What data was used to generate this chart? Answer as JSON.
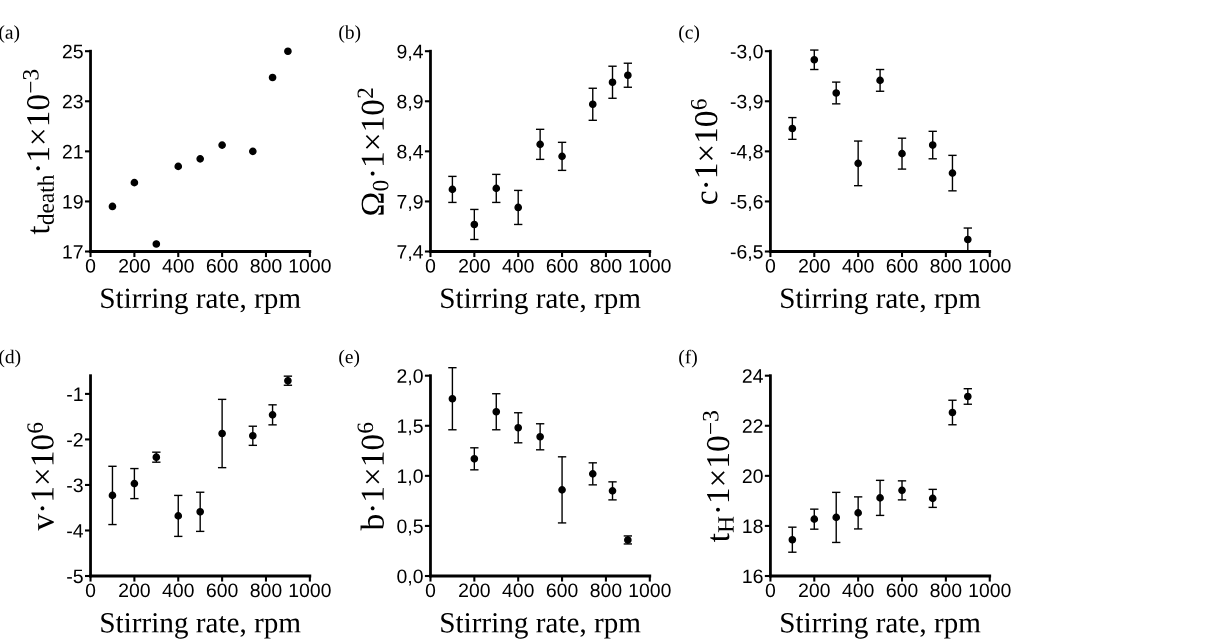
{
  "chart_data": [
    {
      "type": "scatter",
      "title": "(a)",
      "xlabel": "Stirring rate, rpm",
      "ylabel": "t$_{death}$·1×10$^{−3}$",
      "marker": "circle",
      "xlim": [
        0,
        1000
      ],
      "xticks": [
        0,
        200,
        400,
        600,
        800,
        1000
      ],
      "ylim": [
        17,
        25
      ],
      "yticks": [
        17,
        19,
        21,
        23,
        25
      ],
      "x": [
        100,
        200,
        300,
        400,
        500,
        600,
        740,
        830,
        900
      ],
      "series": [
        {
          "color": "#000000",
          "values": [
            18.8,
            19.75,
            17.3,
            20.4,
            20.7,
            21.25,
            21.0,
            23.95,
            25.0
          ]
        }
      ]
    },
    {
      "type": "scatter",
      "title": "(b)",
      "xlabel": "Stirring rate, rpm",
      "ylabel": "Ω$_{0}$·1×10$^{2}$",
      "marker": "circle",
      "xlim": [
        0,
        1000
      ],
      "xticks": [
        0,
        200,
        400,
        600,
        800,
        1000
      ],
      "ylim": [
        7.4,
        9.4
      ],
      "yticks": [
        {
          "value": 7.4,
          "label": "7,4"
        },
        {
          "value": 7.9,
          "label": "7,9"
        },
        {
          "value": 8.4,
          "label": "8,4"
        },
        {
          "value": 8.9,
          "label": "8,9"
        },
        {
          "value": 9.4,
          "label": "9,4"
        }
      ],
      "x": [
        100,
        200,
        300,
        400,
        500,
        600,
        740,
        830,
        900
      ],
      "series": [
        {
          "color": "#000000",
          "values": [
            8.02,
            7.67,
            8.03,
            7.84,
            8.47,
            8.35,
            8.87,
            9.09,
            9.16
          ],
          "errors": [
            0.13,
            0.15,
            0.14,
            0.17,
            0.15,
            0.14,
            0.16,
            0.16,
            0.12
          ]
        }
      ]
    },
    {
      "type": "scatter",
      "title": "(c)",
      "xlabel": "Stirring rate, rpm",
      "ylabel": "c·1×10$^{6}$",
      "marker": "circle",
      "xlim": [
        0,
        1000
      ],
      "xticks": [
        0,
        200,
        400,
        600,
        800,
        1000
      ],
      "ylim": [
        -6.5,
        -3.0
      ],
      "yticks": [
        {
          "value": -6.5,
          "label": "-6,5"
        },
        {
          "value": -5.625,
          "label": "-5,6"
        },
        {
          "value": -4.75,
          "label": "-4,8"
        },
        {
          "value": -3.875,
          "label": "-3,9"
        },
        {
          "value": -3.0,
          "label": "-3,0"
        }
      ],
      "x": [
        100,
        200,
        300,
        400,
        500,
        600,
        740,
        830,
        900
      ],
      "series": [
        {
          "color": "#000000",
          "values": [
            -4.35,
            -3.15,
            -3.73,
            -4.96,
            -3.51,
            -4.79,
            -4.64,
            -5.13,
            -6.29
          ],
          "errors": [
            0.19,
            0.17,
            0.19,
            0.39,
            0.19,
            0.27,
            0.24,
            0.31,
            0.2
          ]
        }
      ]
    },
    {
      "type": "scatter",
      "title": "(d)",
      "xlabel": "Stirring rate, rpm",
      "ylabel": "v·1×10$^{6}$",
      "marker": "circle",
      "xlim": [
        0,
        1000
      ],
      "xticks": [
        0,
        200,
        400,
        600,
        800,
        1000
      ],
      "ylim": [
        -5,
        -0.6
      ],
      "yticks": [
        -5,
        -4,
        -3,
        -2,
        -1
      ],
      "x": [
        100,
        200,
        300,
        400,
        500,
        600,
        740,
        830,
        900
      ],
      "series": [
        {
          "color": "#000000",
          "values": [
            -3.23,
            -2.97,
            -2.39,
            -3.68,
            -3.59,
            -1.87,
            -1.92,
            -1.46,
            -0.71
          ],
          "errors": [
            0.64,
            0.33,
            0.11,
            0.45,
            0.43,
            0.75,
            0.21,
            0.22,
            0.1
          ]
        }
      ]
    },
    {
      "type": "scatter",
      "title": "(e)",
      "xlabel": "Stirring rate, rpm",
      "ylabel": "b·1×10$^{6}$",
      "marker": "circle",
      "xlim": [
        0,
        1000
      ],
      "xticks": [
        0,
        200,
        400,
        600,
        800,
        1000
      ],
      "ylim": [
        0,
        2.0
      ],
      "yticks": [
        {
          "value": 0,
          "label": "0,0"
        },
        {
          "value": 0.5,
          "label": "0,5"
        },
        {
          "value": 1.0,
          "label": "1,0"
        },
        {
          "value": 1.5,
          "label": "1,5"
        },
        {
          "value": 2.0,
          "label": "2,0"
        }
      ],
      "x": [
        100,
        200,
        300,
        400,
        500,
        600,
        740,
        830,
        900
      ],
      "series": [
        {
          "color": "#000000",
          "values": [
            1.77,
            1.17,
            1.64,
            1.48,
            1.39,
            0.86,
            1.02,
            0.85,
            0.36
          ],
          "errors": [
            0.31,
            0.11,
            0.18,
            0.15,
            0.13,
            0.33,
            0.11,
            0.09,
            0.04
          ]
        }
      ]
    },
    {
      "type": "scatter",
      "title": "(f)",
      "xlabel": "Stirring rate, rpm",
      "ylabel": "t$_{H}$·1×10$^{−3}$",
      "marker": "circle",
      "xlim": [
        0,
        1000
      ],
      "xticks": [
        0,
        200,
        400,
        600,
        800,
        1000
      ],
      "ylim": [
        16,
        24
      ],
      "yticks": [
        16,
        18,
        20,
        22,
        24
      ],
      "x": [
        100,
        200,
        300,
        400,
        500,
        600,
        740,
        830,
        900
      ],
      "series": [
        {
          "color": "#000000",
          "values": [
            17.45,
            18.27,
            18.34,
            18.52,
            19.12,
            19.42,
            19.1,
            22.53,
            23.17
          ],
          "errors": [
            0.5,
            0.4,
            1.0,
            0.64,
            0.7,
            0.38,
            0.36,
            0.49,
            0.31
          ]
        }
      ]
    }
  ]
}
